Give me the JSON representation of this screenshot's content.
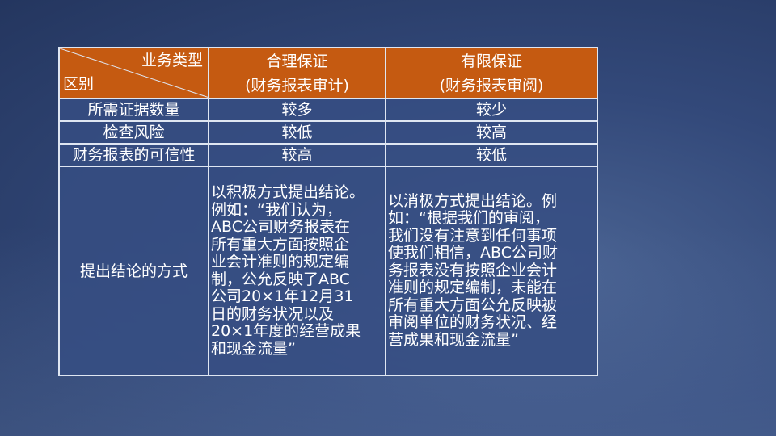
{
  "colors": {
    "header": "#c55a11",
    "cell": "#364e82",
    "border": "#dfe6f2"
  },
  "table": {
    "corner": {
      "top_right": "业务类型",
      "bottom_left": "区别"
    },
    "headers": [
      {
        "line1": "合理保证",
        "line2": "(财务报表审计)"
      },
      {
        "line1": "有限保证",
        "line2": "(财务报表审阅)"
      }
    ],
    "rows": [
      {
        "label": "所需证据数量",
        "reasonable": "较多",
        "limited": "较少"
      },
      {
        "label": "检查风险",
        "reasonable": "较低",
        "limited": "较高"
      },
      {
        "label": "财务报表的可信性",
        "reasonable": "较高",
        "limited": "较低"
      }
    ],
    "conclusion": {
      "label": "提出结论的方式",
      "reasonable": [
        "以积极方式提出结论。",
        "例如：“我们认为，",
        "ABC公司财务报表在",
        "所有重大方面按照企",
        "业会计准则的规定编",
        "制，公允反映了ABC",
        "公司20×1年12月31",
        "日的财务状况以及",
        "20×1年度的经营成果",
        "和现金流量”"
      ],
      "limited": [
        "以消极方式提出结论。例",
        "如：“根据我们的审阅，",
        "我们没有注意到任何事项",
        "使我们相信，ABC公司财",
        "务报表没有按照企业会计",
        "准则的规定编制，未能在",
        "所有重大方面公允反映被",
        "审阅单位的财务状况、经",
        "营成果和现金流量”"
      ]
    }
  }
}
